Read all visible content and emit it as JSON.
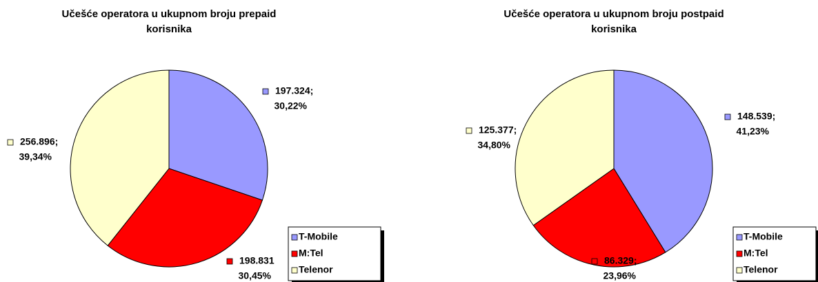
{
  "chart_data": [
    {
      "type": "pie",
      "title": "Učešće operatora u ukupnom broju prepaid korisnika",
      "categories": [
        "T-Mobile",
        "M:Tel",
        "Telenor"
      ],
      "values": [
        197324,
        198831,
        256896
      ],
      "value_labels": [
        [
          "197.324;",
          "30,22%"
        ],
        [
          "198.831",
          "30,45%"
        ],
        [
          "256.896;",
          "39,34%"
        ]
      ],
      "colors": [
        "#9999ff",
        "#ff0000",
        "#ffffcc"
      ]
    },
    {
      "type": "pie",
      "title": "Učešće operatora u ukupnom broju postpaid korisnika",
      "categories": [
        "T-Mobile",
        "M:Tel",
        "Telenor"
      ],
      "values": [
        148539,
        86329,
        125377
      ],
      "value_labels": [
        [
          "148.539;",
          "41,23%"
        ],
        [
          "86.329;",
          "23,96%"
        ],
        [
          "125.377;",
          "34,80%"
        ]
      ],
      "colors": [
        "#9999ff",
        "#ff0000",
        "#ffffcc"
      ]
    }
  ]
}
